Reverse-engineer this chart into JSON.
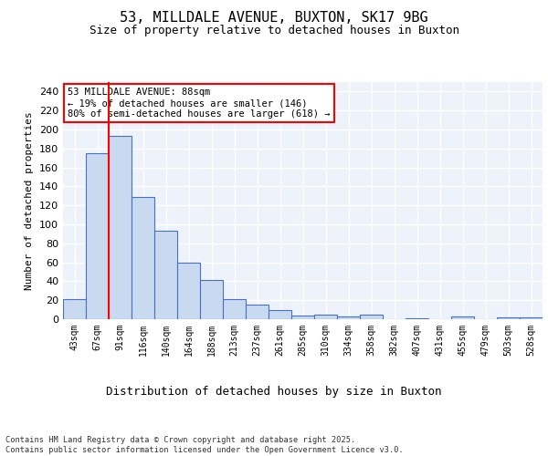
{
  "title": "53, MILLDALE AVENUE, BUXTON, SK17 9BG",
  "subtitle": "Size of property relative to detached houses in Buxton",
  "xlabel": "Distribution of detached houses by size in Buxton",
  "ylabel": "Number of detached properties",
  "categories": [
    "43sqm",
    "67sqm",
    "91sqm",
    "116sqm",
    "140sqm",
    "164sqm",
    "188sqm",
    "213sqm",
    "237sqm",
    "261sqm",
    "285sqm",
    "310sqm",
    "334sqm",
    "358sqm",
    "382sqm",
    "407sqm",
    "431sqm",
    "455sqm",
    "479sqm",
    "503sqm",
    "528sqm"
  ],
  "values": [
    21,
    175,
    193,
    129,
    93,
    60,
    41,
    21,
    15,
    10,
    4,
    5,
    3,
    5,
    0,
    1,
    0,
    3,
    0,
    2,
    2
  ],
  "bar_color": "#c9d9f0",
  "bar_edge_color": "#4472c4",
  "red_line_x": 1.5,
  "annotation_text": "53 MILLDALE AVENUE: 88sqm\n← 19% of detached houses are smaller (146)\n80% of semi-detached houses are larger (618) →",
  "annotation_box_color": "white",
  "annotation_box_edge_color": "red",
  "red_line_color": "red",
  "background_color": "#eef2fa",
  "grid_color": "white",
  "footer_text": "Contains HM Land Registry data © Crown copyright and database right 2025.\nContains public sector information licensed under the Open Government Licence v3.0.",
  "ylim": [
    0,
    250
  ],
  "yticks": [
    0,
    20,
    40,
    60,
    80,
    100,
    120,
    140,
    160,
    180,
    200,
    220,
    240
  ]
}
